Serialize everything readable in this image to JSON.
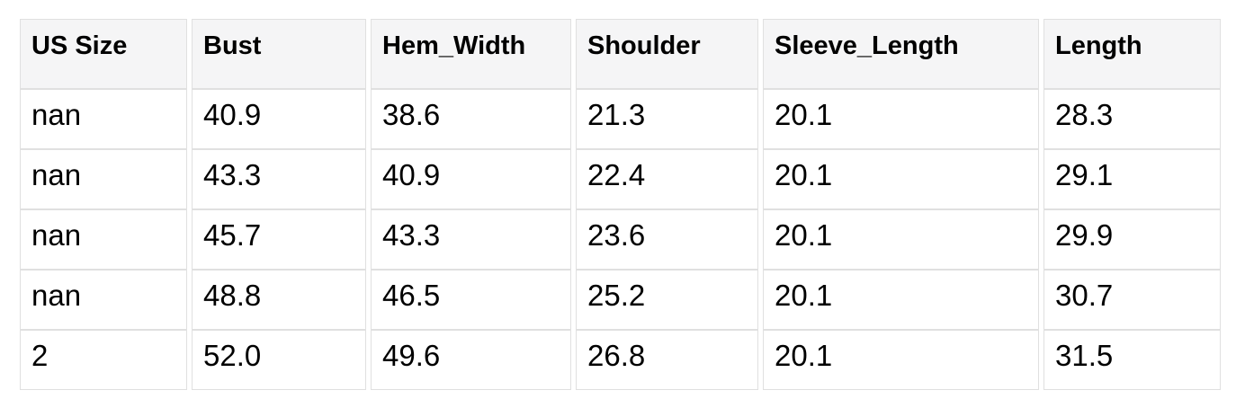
{
  "chart_data": {
    "type": "table",
    "columns": [
      "US Size",
      "Bust",
      "Hem_Width",
      "Shoulder",
      "Sleeve_Length",
      "Length"
    ],
    "rows": [
      [
        "nan",
        "40.9",
        "38.6",
        "21.3",
        "20.1",
        "28.3"
      ],
      [
        "nan",
        "43.3",
        "40.9",
        "22.4",
        "20.1",
        "29.1"
      ],
      [
        "nan",
        "45.7",
        "43.3",
        "23.6",
        "20.1",
        "29.9"
      ],
      [
        "nan",
        "48.8",
        "46.5",
        "25.2",
        "20.1",
        "30.7"
      ],
      [
        "2",
        "52.0",
        "49.6",
        "26.8",
        "20.1",
        "31.5"
      ]
    ]
  },
  "colors": {
    "background": "#ffffff",
    "header_bg": "#f5f5f6",
    "border": "#e0e0e0",
    "row_bg": "#ffffff",
    "text": "#000000"
  }
}
